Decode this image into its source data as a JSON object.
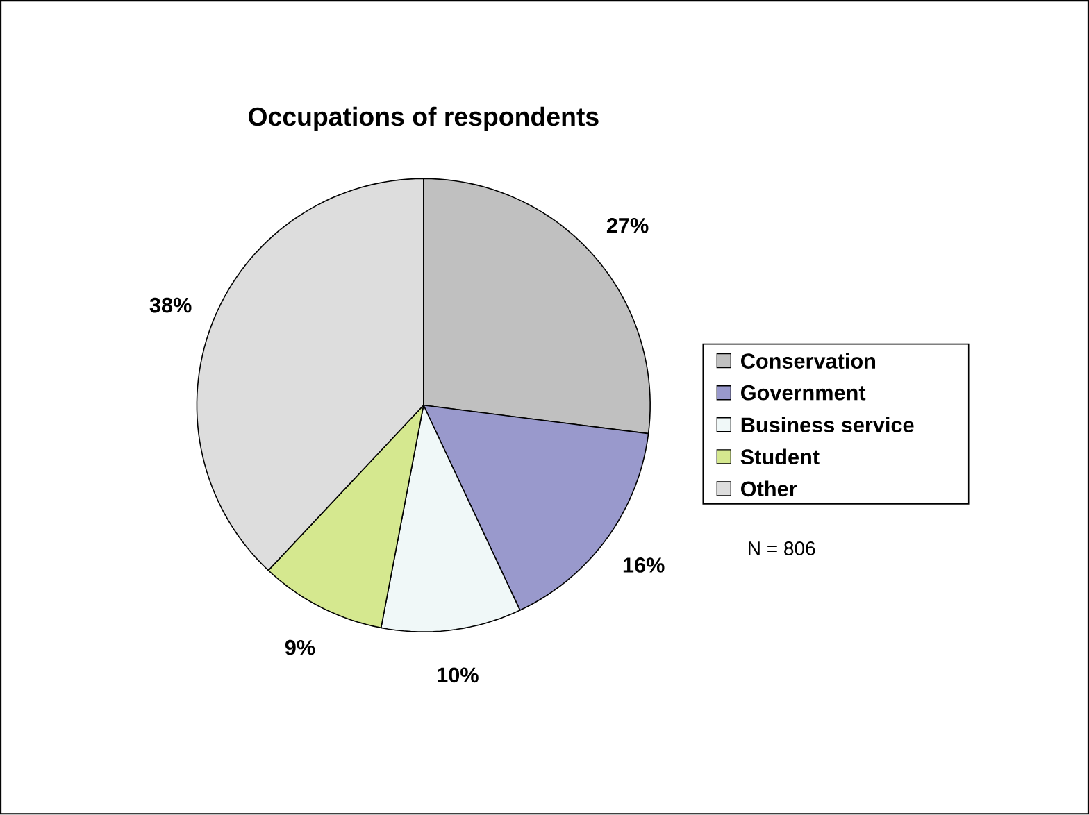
{
  "chart_data": {
    "type": "pie",
    "title": "Occupations of respondents",
    "categories": [
      "Conservation",
      "Government",
      "Business service",
      "Student",
      "Other"
    ],
    "values": [
      27,
      16,
      10,
      9,
      38
    ],
    "colors": [
      "#c0c0c0",
      "#9999cc",
      "#f0f8f8",
      "#d5e88f",
      "#dddddd"
    ],
    "value_labels": [
      "27%",
      "16%",
      "10%",
      "9%",
      "38%"
    ],
    "legend": "right",
    "annotations": [
      "N = 806"
    ]
  }
}
